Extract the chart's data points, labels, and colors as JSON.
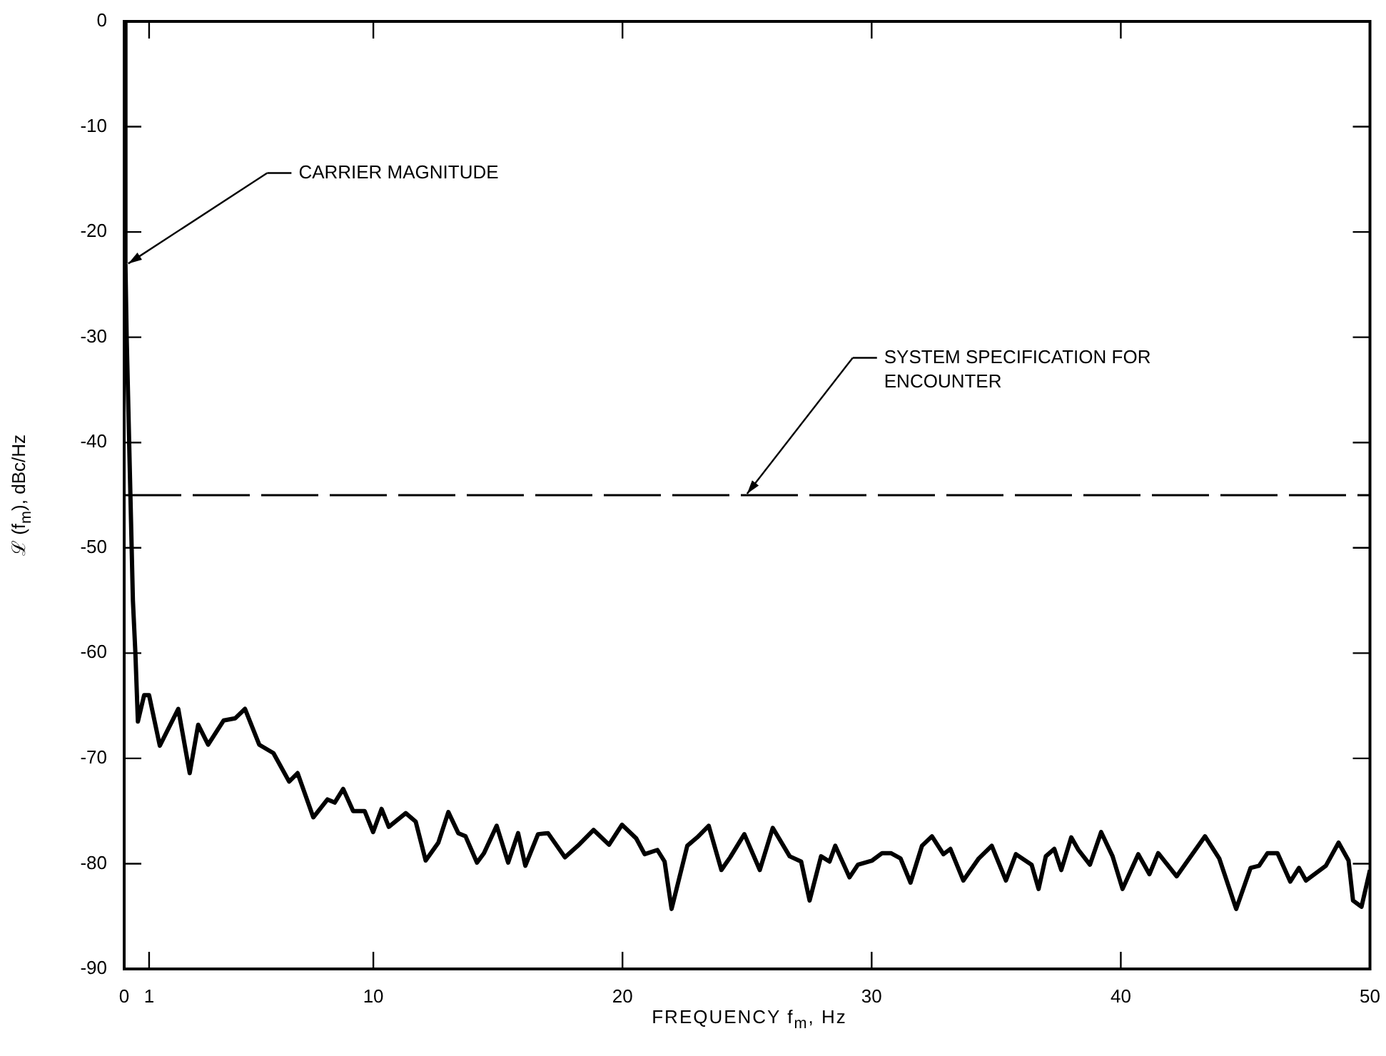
{
  "chart_data": {
    "type": "line",
    "xlabel": "FREQUENCY f$_{m}$, Hz",
    "ylabel": "ℒ (f$_{m}$), dBc/Hz",
    "xlim": [
      0,
      50
    ],
    "xticks": [
      0,
      1,
      10,
      20,
      30,
      40,
      50
    ],
    "ylim": [
      -90,
      0
    ],
    "yticks": [
      -90,
      -80,
      -70,
      -60,
      -50,
      -40,
      -30,
      -20,
      -10,
      0
    ],
    "grid": false,
    "legend": false,
    "marker": "none",
    "line_style": "solid",
    "series": [
      {
        "color": "#000000",
        "x": [
          0,
          0.05,
          0.1,
          0.25,
          0.35,
          0.45,
          0.55,
          0.8,
          1.0,
          1.43,
          2.17,
          2.63,
          2.97,
          3.37,
          3.99,
          4.45,
          4.85,
          5.42,
          5.99,
          6.62,
          6.96,
          7.59,
          8.16,
          8.45,
          8.79,
          9.19,
          9.65,
          9.99,
          10.33,
          10.62,
          11.3,
          11.7,
          12.1,
          12.61,
          13.01,
          13.41,
          13.7,
          14.16,
          14.44,
          14.95,
          15.41,
          15.81,
          16.1,
          16.61,
          17.01,
          17.69,
          18.21,
          18.84,
          19.46,
          19.98,
          20.55,
          20.89,
          21.4,
          21.69,
          21.97,
          22.6,
          23.0,
          23.46,
          23.97,
          24.32,
          24.89,
          25.51,
          26.03,
          26.71,
          27.17,
          27.51,
          27.97,
          28.31,
          28.54,
          29.11,
          29.45,
          30.02,
          30.42,
          30.77,
          31.16,
          31.56,
          32.02,
          32.42,
          32.88,
          33.16,
          33.68,
          34.3,
          34.82,
          35.39,
          35.79,
          36.42,
          36.7,
          36.99,
          37.33,
          37.61,
          38.01,
          38.3,
          38.76,
          39.21,
          39.67,
          40.07,
          40.7,
          41.15,
          41.5,
          42.24,
          42.69,
          43.38,
          43.95,
          44.63,
          45.21,
          45.55,
          45.89,
          46.29,
          46.8,
          47.15,
          47.43,
          48.23,
          48.74,
          49.14,
          49.32,
          49.66,
          50
        ],
        "values": [
          0,
          -23,
          -30,
          -45,
          -55,
          -60,
          -66.5,
          -64,
          -64,
          -68.8,
          -65.3,
          -71.4,
          -66.8,
          -68.7,
          -66.4,
          -66.2,
          -65.3,
          -68.7,
          -69.5,
          -72.2,
          -71.4,
          -75.6,
          -73.9,
          -74.2,
          -72.9,
          -75,
          -75,
          -77,
          -74.8,
          -76.5,
          -75.2,
          -76,
          -79.7,
          -78,
          -75.1,
          -77.1,
          -77.4,
          -79.9,
          -79,
          -76.4,
          -79.9,
          -77.1,
          -80.2,
          -77.2,
          -77.1,
          -79.4,
          -78.3,
          -76.8,
          -78.2,
          -76.3,
          -77.6,
          -79.1,
          -78.7,
          -79.8,
          -84.3,
          -78.3,
          -77.5,
          -76.4,
          -80.6,
          -79.4,
          -77.2,
          -80.6,
          -76.6,
          -79.3,
          -79.8,
          -83.5,
          -79.3,
          -79.8,
          -78.3,
          -81.3,
          -80.1,
          -79.7,
          -79,
          -79,
          -79.5,
          -81.8,
          -78.3,
          -77.4,
          -79.1,
          -78.6,
          -81.6,
          -79.5,
          -78.3,
          -81.6,
          -79.1,
          -80.1,
          -82.4,
          -79.3,
          -78.6,
          -80.6,
          -77.5,
          -78.7,
          -80.1,
          -77,
          -79.3,
          -82.4,
          -79.1,
          -81,
          -79,
          -81.2,
          -79.7,
          -77.4,
          -79.5,
          -84.3,
          -80.4,
          -80.2,
          -79,
          -79,
          -81.7,
          -80.4,
          -81.6,
          -80.2,
          -78,
          -79.7,
          -83.5,
          -84.1,
          -80.6
        ]
      }
    ],
    "ref_lines": [
      {
        "axis": "y",
        "value": -45,
        "line_style": "dashed",
        "color": "#000000"
      }
    ],
    "annotations": [
      "CARRIER MAGNITUDE",
      "SYSTEM SPECIFICATION FOR ENCOUNTER"
    ]
  }
}
